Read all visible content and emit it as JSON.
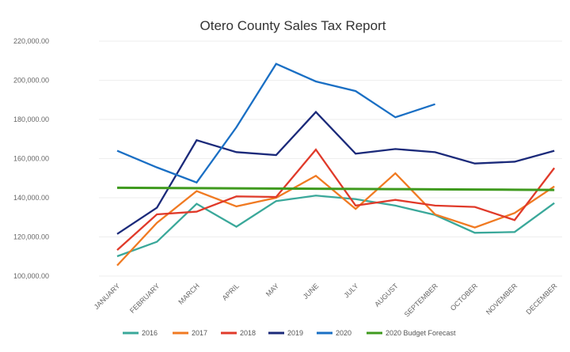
{
  "chart_data": {
    "type": "line",
    "title": "Otero County Sales Tax Report",
    "xlabel": "",
    "ylabel": "",
    "ylim": [
      100000,
      220000
    ],
    "yticks": [
      "100,000.00",
      "120,000.00",
      "140,000.00",
      "160,000.00",
      "180,000.00",
      "200,000.00",
      "220,000.00"
    ],
    "grid": true,
    "legend": "bottom",
    "categories": [
      "JANUARY",
      "FEBRUARY",
      "MARCH",
      "APRIL",
      "MAY",
      "JUNE",
      "JULY",
      "AUGUST",
      "SEPTEMBER",
      "OCTOBER",
      "NOVEMBER",
      "DECEMBER"
    ],
    "series": [
      {
        "name": "2016",
        "color": "#3aa89a",
        "values": [
          110100,
          117500,
          136900,
          125200,
          138300,
          141100,
          139300,
          136000,
          131200,
          122100,
          122500,
          137300
        ]
      },
      {
        "name": "2017",
        "color": "#f07a22",
        "values": [
          105400,
          127200,
          143400,
          135600,
          140000,
          151200,
          134300,
          152500,
          131500,
          124800,
          132200,
          145800
        ]
      },
      {
        "name": "2018",
        "color": "#e03a2a",
        "values": [
          113300,
          131500,
          132900,
          140700,
          140400,
          164600,
          136000,
          138900,
          136000,
          135300,
          128600,
          155200
        ]
      },
      {
        "name": "2019",
        "color": "#1b2a7a",
        "values": [
          121500,
          134900,
          169400,
          163300,
          161800,
          183800,
          162500,
          164900,
          163300,
          157500,
          158400,
          164000
        ]
      },
      {
        "name": "2020",
        "color": "#1a6fc4",
        "values": [
          164000,
          155500,
          147800,
          176000,
          208400,
          199400,
          194500,
          181100,
          187800,
          null,
          null,
          null
        ]
      },
      {
        "name": "2020 Budget Forecast",
        "color": "#3f9a1e",
        "values": [
          145100,
          145000,
          144900,
          144800,
          144700,
          144600,
          144500,
          144400,
          144300,
          144200,
          144100,
          144000
        ]
      }
    ]
  }
}
